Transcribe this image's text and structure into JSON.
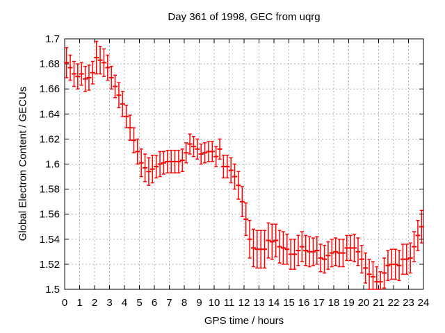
{
  "chart_data": {
    "type": "scatter",
    "subtype": "yerrorbars",
    "title": "Day 361 of 1998, GEC from uqrg",
    "xlabel": "GPS time / hours",
    "ylabel": "Global Electron Content / GECUs",
    "xlim": [
      0,
      24
    ],
    "ylim": [
      1.5,
      1.7
    ],
    "grid": true,
    "legend": "none",
    "frame_color": "#000000",
    "grid_color": "#b0b0b0",
    "xticks": {
      "values": [
        0,
        1,
        2,
        3,
        4,
        5,
        6,
        7,
        8,
        9,
        10,
        11,
        12,
        13,
        14,
        15,
        16,
        17,
        18,
        19,
        20,
        21,
        22,
        23,
        24
      ],
      "labels": [
        "0",
        "1",
        "2",
        "3",
        "4",
        "5",
        "6",
        "7",
        "8",
        "9",
        "10",
        "11",
        "12",
        "13",
        "14",
        "15",
        "16",
        "17",
        "18",
        "19",
        "20",
        "21",
        "22",
        "23",
        "24"
      ]
    },
    "yticks": {
      "values": [
        1.5,
        1.52,
        1.54,
        1.56,
        1.58,
        1.6,
        1.62,
        1.64,
        1.66,
        1.68,
        1.7
      ],
      "labels": [
        "1.5",
        "1.52",
        "1.54",
        "1.56",
        "1.58",
        "1.6",
        "1.62",
        "1.64",
        "1.66",
        "1.68",
        "1.7"
      ]
    },
    "series": [
      {
        "name": "GEC",
        "color": "#ff0000",
        "x": [
          0.125,
          0.375,
          0.625,
          0.875,
          1.125,
          1.375,
          1.625,
          1.875,
          2.125,
          2.375,
          2.625,
          2.875,
          3.125,
          3.375,
          3.625,
          3.875,
          4.125,
          4.375,
          4.625,
          4.875,
          5.125,
          5.375,
          5.625,
          5.875,
          6.125,
          6.375,
          6.625,
          6.875,
          7.125,
          7.375,
          7.625,
          7.875,
          8.125,
          8.375,
          8.625,
          8.875,
          9.125,
          9.375,
          9.625,
          9.875,
          10.125,
          10.375,
          10.625,
          10.875,
          11.125,
          11.375,
          11.625,
          11.875,
          12.125,
          12.375,
          12.625,
          12.875,
          13.125,
          13.375,
          13.625,
          13.875,
          14.125,
          14.375,
          14.625,
          14.875,
          15.125,
          15.375,
          15.625,
          15.875,
          16.125,
          16.375,
          16.625,
          16.875,
          17.125,
          17.375,
          17.625,
          17.875,
          18.125,
          18.375,
          18.625,
          18.875,
          19.125,
          19.375,
          19.625,
          19.875,
          20.125,
          20.375,
          20.625,
          20.875,
          21.125,
          21.375,
          21.625,
          21.875,
          22.125,
          22.375,
          22.625,
          22.875,
          23.125,
          23.375,
          23.625,
          23.875
        ],
        "y": [
          1.681,
          1.677,
          1.672,
          1.67,
          1.672,
          1.668,
          1.669,
          1.673,
          1.685,
          1.683,
          1.681,
          1.677,
          1.669,
          1.662,
          1.655,
          1.648,
          1.638,
          1.629,
          1.619,
          1.61,
          1.601,
          1.597,
          1.594,
          1.596,
          1.598,
          1.6,
          1.601,
          1.602,
          1.602,
          1.602,
          1.602,
          1.603,
          1.609,
          1.616,
          1.614,
          1.612,
          1.608,
          1.609,
          1.61,
          1.61,
          1.606,
          1.612,
          1.598,
          1.598,
          1.595,
          1.59,
          1.583,
          1.57,
          1.556,
          1.54,
          1.533,
          1.532,
          1.532,
          1.532,
          1.539,
          1.538,
          1.539,
          1.534,
          1.533,
          1.532,
          1.528,
          1.528,
          1.531,
          1.534,
          1.531,
          1.53,
          1.53,
          1.531,
          1.525,
          1.524,
          1.527,
          1.529,
          1.53,
          1.529,
          1.529,
          1.533,
          1.533,
          1.533,
          1.53,
          1.524,
          1.517,
          1.512,
          1.51,
          1.506,
          1.506,
          1.513,
          1.519,
          1.52,
          1.52,
          1.519,
          1.524,
          1.524,
          1.525,
          1.534,
          1.543,
          1.55
        ],
        "yerr": [
          0.012,
          0.01,
          0.01,
          0.01,
          0.009,
          0.01,
          0.01,
          0.009,
          0.013,
          0.011,
          0.011,
          0.01,
          0.009,
          0.009,
          0.01,
          0.01,
          0.009,
          0.01,
          0.01,
          0.01,
          0.011,
          0.011,
          0.011,
          0.011,
          0.009,
          0.01,
          0.009,
          0.009,
          0.009,
          0.009,
          0.009,
          0.009,
          0.008,
          0.008,
          0.008,
          0.008,
          0.008,
          0.008,
          0.008,
          0.008,
          0.008,
          0.008,
          0.009,
          0.009,
          0.01,
          0.01,
          0.011,
          0.012,
          0.013,
          0.015,
          0.015,
          0.015,
          0.015,
          0.015,
          0.014,
          0.014,
          0.013,
          0.013,
          0.013,
          0.012,
          0.012,
          0.012,
          0.012,
          0.012,
          0.012,
          0.012,
          0.011,
          0.011,
          0.011,
          0.011,
          0.011,
          0.011,
          0.011,
          0.011,
          0.011,
          0.01,
          0.01,
          0.011,
          0.011,
          0.011,
          0.012,
          0.012,
          0.012,
          0.012,
          0.008,
          0.012,
          0.012,
          0.012,
          0.012,
          0.012,
          0.012,
          0.012,
          0.012,
          0.012,
          0.012,
          0.013
        ]
      }
    ]
  }
}
